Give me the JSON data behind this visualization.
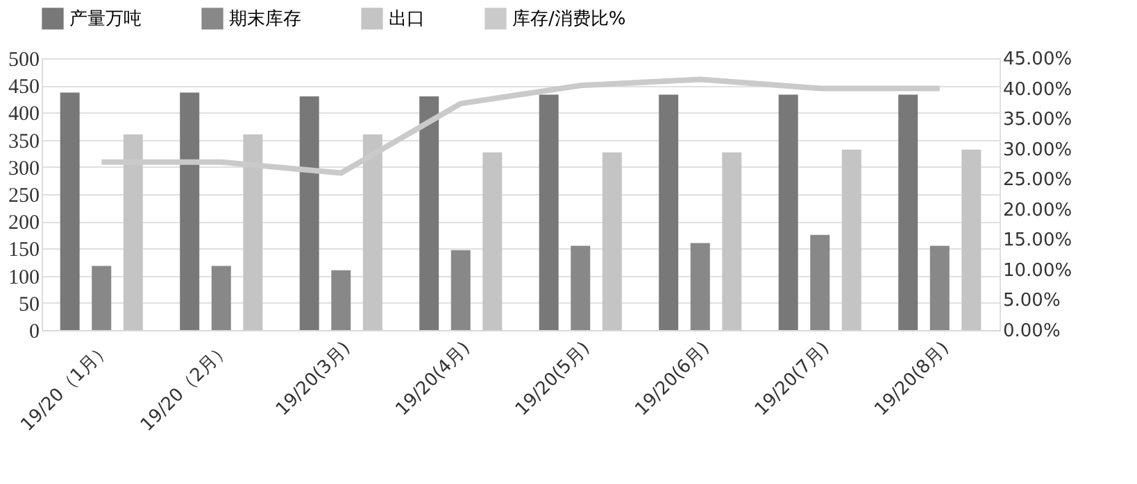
{
  "chart_data": {
    "type": "bar",
    "categories": [
      "19/20（1月）",
      "19/20（2月）",
      "19/20(3月)",
      "19/20(4月)",
      "19/20(5月)",
      "19/20(6月)",
      "19/20(7月)",
      "19/20(8月)"
    ],
    "series": [
      {
        "name": "产量万吨",
        "color": "#787878",
        "values": [
          437,
          437,
          430,
          430,
          433,
          433,
          433,
          433
        ]
      },
      {
        "name": "期末库存",
        "color": "#888888",
        "values": [
          118,
          118,
          110,
          147,
          155,
          160,
          175,
          155
        ]
      },
      {
        "name": "出口",
        "color": "#c4c4c4",
        "values": [
          360,
          360,
          360,
          327,
          327,
          327,
          332,
          332
        ]
      },
      {
        "name": "库存/消费比%",
        "color": "#cacaca",
        "type": "line",
        "axis": "y2",
        "values": [
          27.8,
          27.8,
          26.0,
          37.5,
          40.5,
          41.5,
          40.0,
          40.0
        ]
      }
    ],
    "ylim": [
      0,
      500
    ],
    "yticks": [
      0,
      50,
      100,
      150,
      200,
      250,
      300,
      350,
      400,
      450,
      500
    ],
    "y2lim": [
      0,
      45
    ],
    "y2ticks": [
      {
        "value": 0,
        "label": "0.00%"
      },
      {
        "value": 5,
        "label": "5.00%"
      },
      {
        "value": 10,
        "label": "10.00%"
      },
      {
        "value": 15,
        "label": "15.00%"
      },
      {
        "value": 20,
        "label": "20.00%"
      },
      {
        "value": 25,
        "label": "25.00%"
      },
      {
        "value": 30,
        "label": "30.00%"
      },
      {
        "value": 35,
        "label": "35.00%"
      },
      {
        "value": 40,
        "label": "40.00%"
      },
      {
        "value": 45,
        "label": "45.00%"
      }
    ],
    "grid": "y",
    "legend": "top",
    "marker": "none",
    "line_style": "solid"
  }
}
